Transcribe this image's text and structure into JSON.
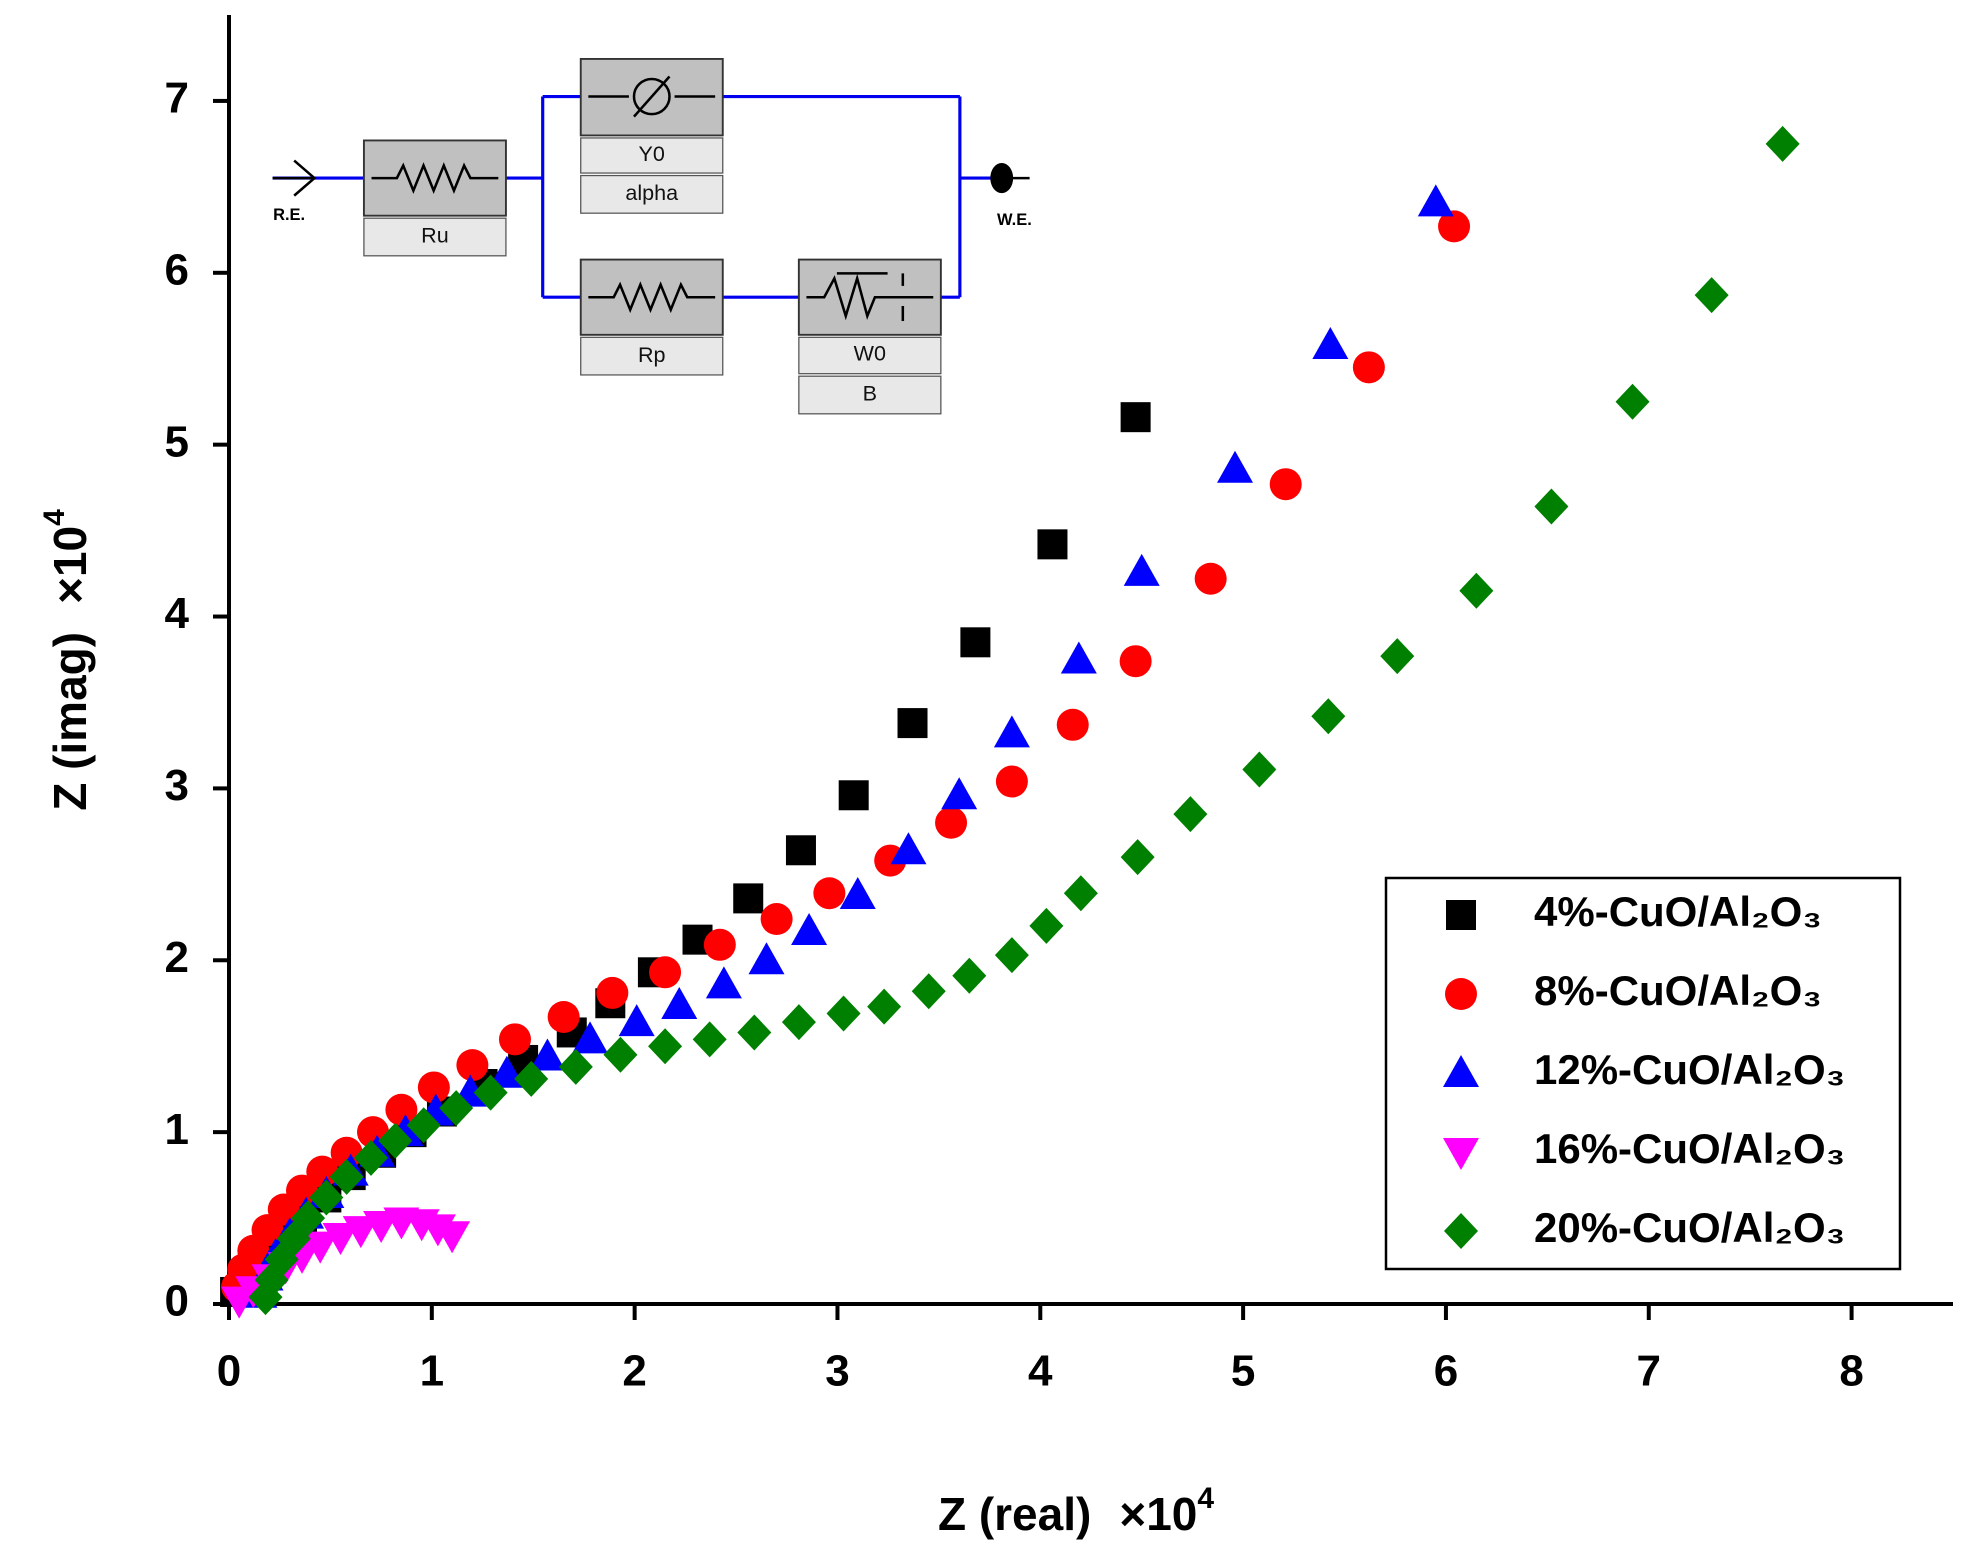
{
  "chart_data": {
    "type": "scatter",
    "x_label": "Z (real)",
    "x_multiplier": "×10",
    "x_multiplier_exponent": "4",
    "y_label": "Z (imag)",
    "y_multiplier": "×10",
    "y_multiplier_exponent": "4",
    "xlim": [
      0,
      8.5
    ],
    "xticks": [
      0,
      1,
      2,
      3,
      4,
      5,
      6,
      7,
      8
    ],
    "ylim": [
      0,
      7.5
    ],
    "yticks": [
      0,
      1,
      2,
      3,
      4,
      5,
      6,
      7
    ],
    "legend": "lower right",
    "series": [
      {
        "name": "4%-CuO/Al₂O₃",
        "color": "#000000",
        "marker": "square",
        "x": [
          0.03,
          0.08,
          0.15,
          0.25,
          0.36,
          0.48,
          0.6,
          0.75,
          0.9,
          1.05,
          1.25,
          1.45,
          1.69,
          1.88,
          2.09,
          2.31,
          2.56,
          2.82,
          3.08,
          3.37,
          3.68,
          4.06,
          4.47
        ],
        "values": [
          0.07,
          0.15,
          0.26,
          0.38,
          0.5,
          0.62,
          0.75,
          0.88,
          1.0,
          1.12,
          1.28,
          1.42,
          1.58,
          1.75,
          1.93,
          2.12,
          2.36,
          2.64,
          2.96,
          3.38,
          3.85,
          4.42,
          5.16
        ]
      },
      {
        "name": "8%-CuO/Al₂O₃",
        "color": "#ff0000",
        "marker": "circle",
        "x": [
          0.04,
          0.07,
          0.12,
          0.19,
          0.27,
          0.36,
          0.46,
          0.58,
          0.71,
          0.85,
          1.01,
          1.2,
          1.41,
          1.65,
          1.89,
          2.15,
          2.42,
          2.7,
          2.96,
          3.26,
          3.56,
          3.86,
          4.16,
          4.47,
          4.84,
          5.21,
          5.62,
          6.04
        ],
        "values": [
          0.1,
          0.2,
          0.31,
          0.43,
          0.55,
          0.66,
          0.77,
          0.88,
          1.0,
          1.13,
          1.26,
          1.39,
          1.54,
          1.67,
          1.81,
          1.93,
          2.09,
          2.24,
          2.39,
          2.58,
          2.8,
          3.04,
          3.37,
          3.74,
          4.22,
          4.77,
          5.45,
          6.27
        ]
      },
      {
        "name": "12%-CuO/Al₂O₃",
        "color": "#0000ff",
        "marker": "triangle",
        "x": [
          0.15,
          0.18,
          0.23,
          0.3,
          0.38,
          0.48,
          0.6,
          0.73,
          0.87,
          1.02,
          1.19,
          1.37,
          1.57,
          1.78,
          2.01,
          2.22,
          2.44,
          2.65,
          2.86,
          3.1,
          3.35,
          3.6,
          3.86,
          4.19,
          4.5,
          4.96,
          5.43,
          5.95
        ],
        "values": [
          0.06,
          0.16,
          0.28,
          0.4,
          0.52,
          0.64,
          0.77,
          0.88,
          1.0,
          1.12,
          1.23,
          1.34,
          1.44,
          1.54,
          1.64,
          1.74,
          1.86,
          2.0,
          2.17,
          2.38,
          2.64,
          2.96,
          3.32,
          3.75,
          4.26,
          4.86,
          5.58,
          6.41
        ]
      },
      {
        "name": "16%-CuO/Al₂O₃",
        "color": "#ff00ff",
        "marker": "triangle-down",
        "x": [
          0.05,
          0.12,
          0.2,
          0.28,
          0.36,
          0.45,
          0.55,
          0.65,
          0.75,
          0.85,
          0.95,
          1.03,
          1.1
        ],
        "values": [
          0.02,
          0.08,
          0.15,
          0.22,
          0.28,
          0.34,
          0.39,
          0.43,
          0.46,
          0.48,
          0.47,
          0.44,
          0.4
        ]
      },
      {
        "name": "20%-CuO/Al₂O₃",
        "color": "#008000",
        "marker": "diamond",
        "x": [
          0.18,
          0.21,
          0.26,
          0.32,
          0.39,
          0.48,
          0.58,
          0.7,
          0.82,
          0.96,
          1.12,
          1.29,
          1.49,
          1.71,
          1.93,
          2.15,
          2.37,
          2.59,
          2.81,
          3.03,
          3.23,
          3.45,
          3.65,
          3.86,
          4.03,
          4.2,
          4.48,
          4.74,
          5.08,
          5.42,
          5.76,
          6.15,
          6.52,
          6.92,
          7.31,
          7.66
        ],
        "values": [
          0.04,
          0.14,
          0.26,
          0.38,
          0.5,
          0.62,
          0.74,
          0.85,
          0.95,
          1.04,
          1.14,
          1.23,
          1.31,
          1.38,
          1.45,
          1.5,
          1.54,
          1.58,
          1.64,
          1.69,
          1.73,
          1.82,
          1.91,
          2.03,
          2.2,
          2.39,
          2.6,
          2.85,
          3.11,
          3.42,
          3.77,
          4.15,
          4.64,
          5.25,
          5.87,
          6.75
        ]
      }
    ]
  },
  "inset": {
    "labels": {
      "re": "R.E.",
      "ru": "Ru",
      "y0": "Y0",
      "alpha": "alpha",
      "rp": "Rp",
      "w0": "W0",
      "b": "B",
      "we": "W.E."
    }
  }
}
